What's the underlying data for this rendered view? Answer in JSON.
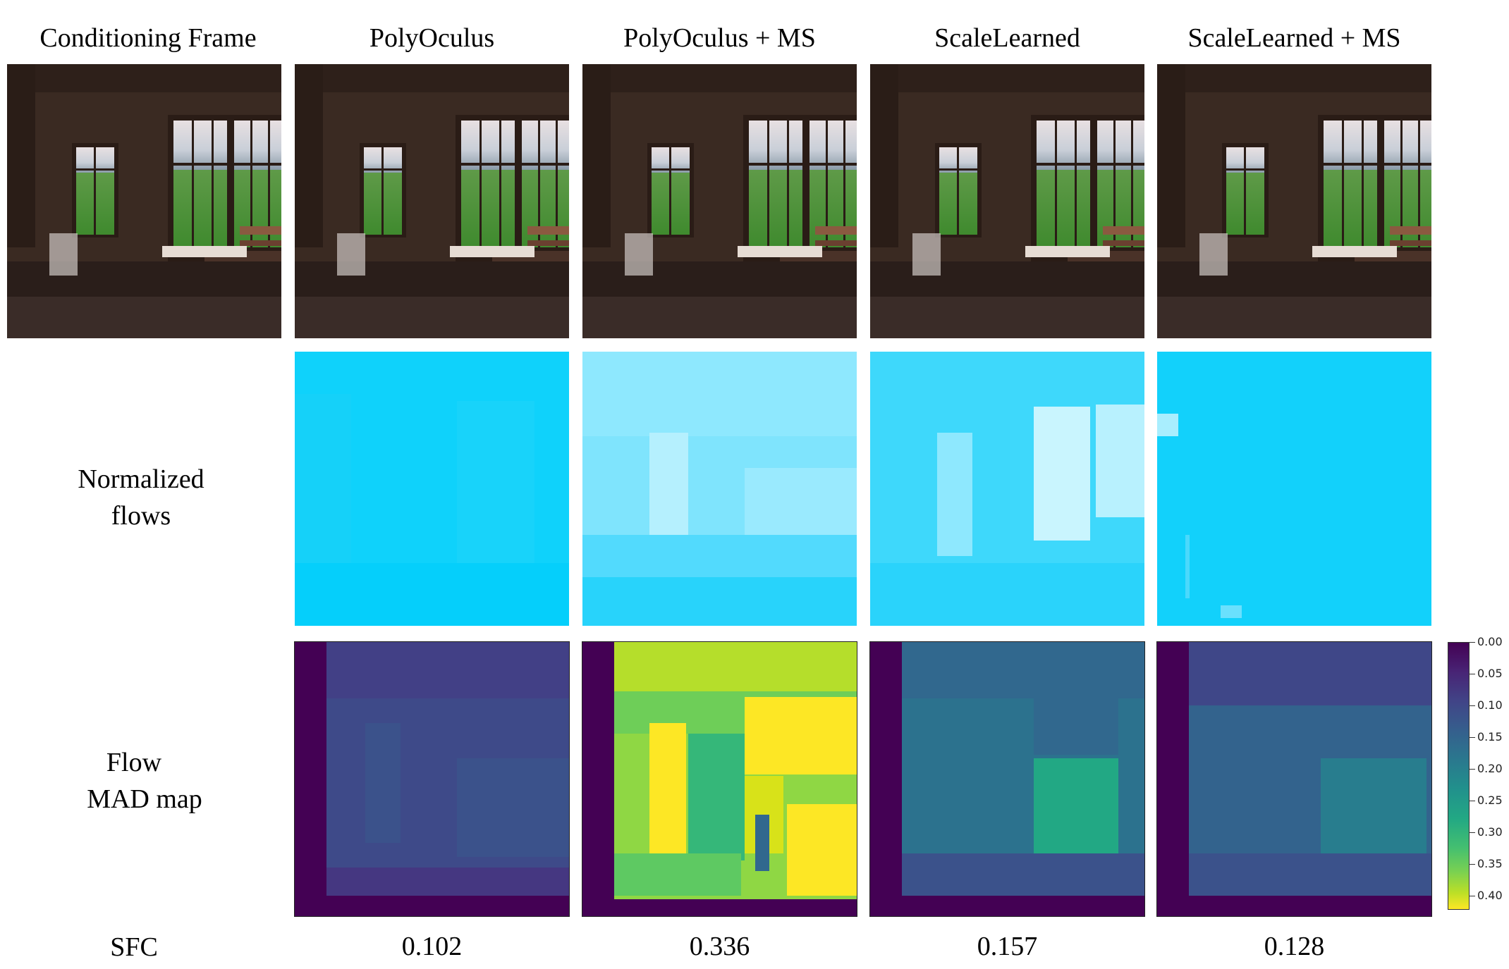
{
  "columns": {
    "conditioning": "Conditioning Frame",
    "polyoculus": "PolyOculus",
    "polyoculus_ms": "PolyOculus + MS",
    "scalelearned": "ScaleLearned",
    "scalelearned_ms": "ScaleLearned + MS"
  },
  "rows": {
    "flows_line1": "Normalized",
    "flows_line2": "flows",
    "mad_line1": "Flow",
    "mad_line2": "MAD map",
    "sfc": "SFC"
  },
  "sfc_values": {
    "polyoculus": "0.102",
    "polyoculus_ms": "0.336",
    "scalelearned": "0.157",
    "scalelearned_ms": "0.128"
  },
  "colorbar": {
    "ticks": [
      "0.00",
      "0.05",
      "0.10",
      "0.15",
      "0.20",
      "0.25",
      "0.30",
      "0.35",
      "0.40"
    ],
    "colormap": "viridis (reversed)"
  }
}
